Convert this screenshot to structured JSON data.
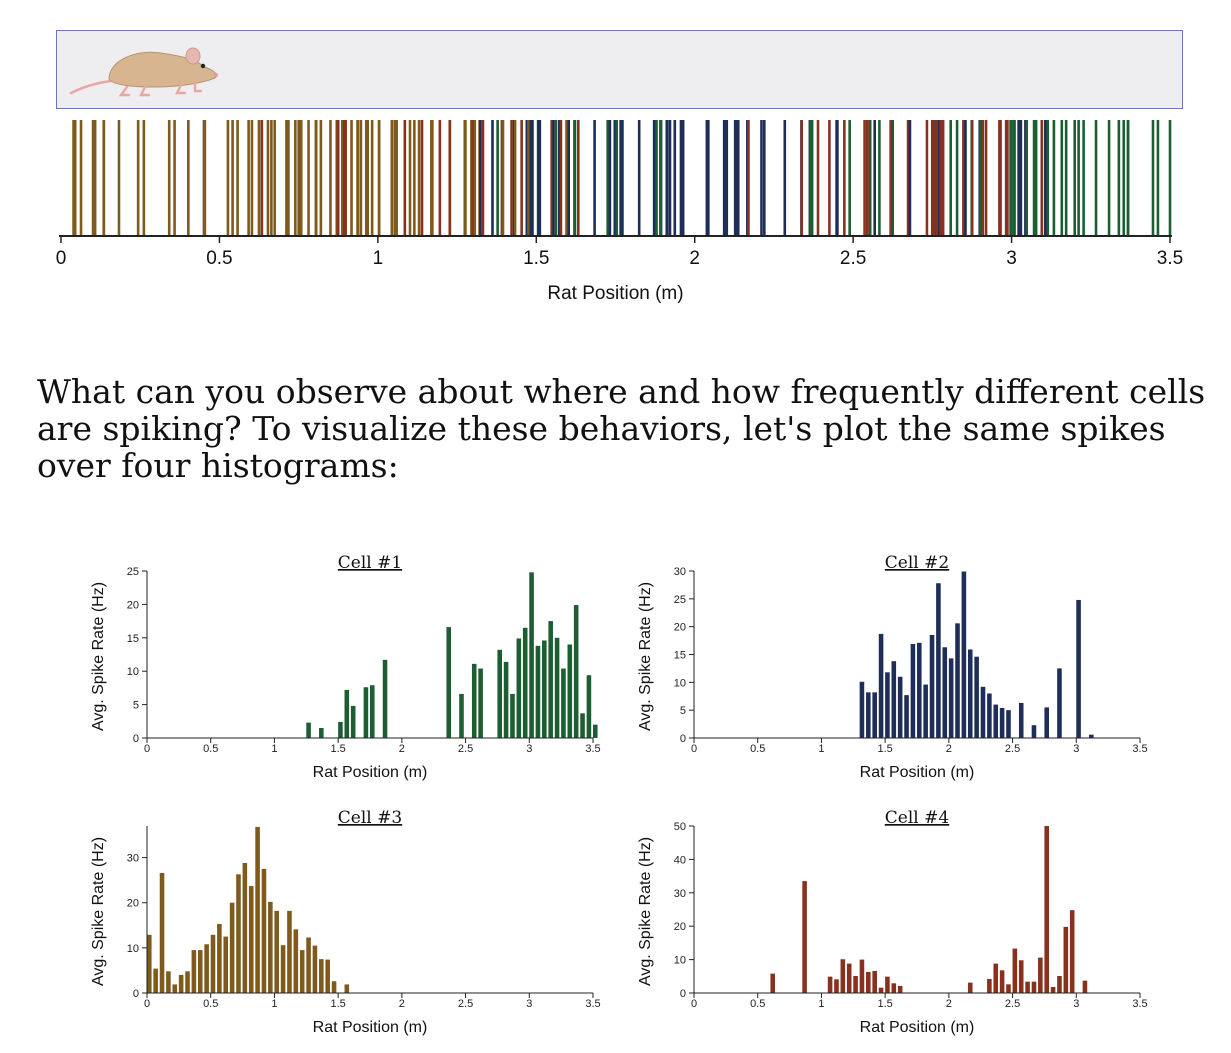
{
  "question": "What can you observe about where and how frequently different cells are spiking? To visualize these behaviors, let's plot the same spikes over four histograms:",
  "raster": {
    "xlabel": "Rat Position (m)",
    "xlim": [
      0,
      3.5
    ],
    "ticks": [
      0,
      0.5,
      1,
      1.5,
      2,
      2.5,
      3,
      3.5
    ],
    "tick_labels": [
      "0",
      "0.5",
      "1",
      "1.5",
      "2",
      "2.5",
      "3",
      "3.5"
    ]
  },
  "chart_data": [
    {
      "type": "bar",
      "cell": 1,
      "title": "Cell #1",
      "xlabel": "Rat Position (m)",
      "ylabel": "Avg. Spike Rate (Hz)",
      "color": "#1c5e32",
      "bin_width": 0.05,
      "xlim": [
        0,
        3.5
      ],
      "ylim": [
        0,
        25
      ],
      "xticks": [
        0,
        0.5,
        1,
        1.5,
        2,
        2.5,
        3,
        3.5
      ],
      "xtick_labels": [
        "0",
        "0.5",
        "1",
        "1.5",
        "2",
        "2.5",
        "3",
        "3.5"
      ],
      "yticks": [
        0,
        5,
        10,
        15,
        20,
        25
      ],
      "ytick_labels": [
        "0",
        "5",
        "10",
        "15",
        "20",
        "25"
      ],
      "bins": [
        {
          "x": 1.25,
          "y": 2.3
        },
        {
          "x": 1.35,
          "y": 1.5
        },
        {
          "x": 1.5,
          "y": 2.4
        },
        {
          "x": 1.55,
          "y": 7.2
        },
        {
          "x": 1.6,
          "y": 4.8
        },
        {
          "x": 1.7,
          "y": 7.6
        },
        {
          "x": 1.75,
          "y": 7.9
        },
        {
          "x": 1.85,
          "y": 11.7
        },
        {
          "x": 2.35,
          "y": 16.6
        },
        {
          "x": 2.45,
          "y": 6.6
        },
        {
          "x": 2.55,
          "y": 11.1
        },
        {
          "x": 2.6,
          "y": 10.4
        },
        {
          "x": 2.75,
          "y": 13.2
        },
        {
          "x": 2.8,
          "y": 11.4
        },
        {
          "x": 2.85,
          "y": 6.6
        },
        {
          "x": 2.9,
          "y": 14.9
        },
        {
          "x": 2.95,
          "y": 16.5
        },
        {
          "x": 3.0,
          "y": 24.8
        },
        {
          "x": 3.05,
          "y": 13.8
        },
        {
          "x": 3.1,
          "y": 14.6
        },
        {
          "x": 3.15,
          "y": 17.5
        },
        {
          "x": 3.2,
          "y": 15.0
        },
        {
          "x": 3.25,
          "y": 10.4
        },
        {
          "x": 3.3,
          "y": 14.0
        },
        {
          "x": 3.35,
          "y": 19.9
        },
        {
          "x": 3.4,
          "y": 3.7
        },
        {
          "x": 3.45,
          "y": 9.4
        },
        {
          "x": 3.5,
          "y": 2.0
        }
      ]
    },
    {
      "type": "bar",
      "cell": 2,
      "title": "Cell #2",
      "xlabel": "Rat Position (m)",
      "ylabel": "Avg. Spike Rate (Hz)",
      "color": "#1e2e58",
      "bin_width": 0.05,
      "xlim": [
        0,
        3.5
      ],
      "ylim": [
        0,
        30
      ],
      "xticks": [
        0,
        0.5,
        1,
        1.5,
        2,
        2.5,
        3,
        3.5
      ],
      "xtick_labels": [
        "0",
        "0.5",
        "1",
        "1.5",
        "2",
        "2.5",
        "3",
        "3.5"
      ],
      "yticks": [
        0,
        5,
        10,
        15,
        20,
        25,
        30
      ],
      "ytick_labels": [
        "0",
        "5",
        "10",
        "15",
        "20",
        "25",
        "30"
      ],
      "bins": [
        {
          "x": 1.3,
          "y": 10.1
        },
        {
          "x": 1.35,
          "y": 8.2
        },
        {
          "x": 1.4,
          "y": 8.2
        },
        {
          "x": 1.45,
          "y": 18.7
        },
        {
          "x": 1.5,
          "y": 11.8
        },
        {
          "x": 1.55,
          "y": 13.8
        },
        {
          "x": 1.6,
          "y": 11.0
        },
        {
          "x": 1.65,
          "y": 7.7
        },
        {
          "x": 1.7,
          "y": 16.9
        },
        {
          "x": 1.75,
          "y": 17.1
        },
        {
          "x": 1.8,
          "y": 9.6
        },
        {
          "x": 1.85,
          "y": 18.5
        },
        {
          "x": 1.9,
          "y": 27.8
        },
        {
          "x": 1.95,
          "y": 16.3
        },
        {
          "x": 2.0,
          "y": 14.3
        },
        {
          "x": 2.05,
          "y": 20.6
        },
        {
          "x": 2.1,
          "y": 29.9
        },
        {
          "x": 2.15,
          "y": 15.9
        },
        {
          "x": 2.2,
          "y": 14.6
        },
        {
          "x": 2.25,
          "y": 9.2
        },
        {
          "x": 2.3,
          "y": 8.0
        },
        {
          "x": 2.35,
          "y": 6.0
        },
        {
          "x": 2.4,
          "y": 5.4
        },
        {
          "x": 2.45,
          "y": 5.0
        },
        {
          "x": 2.55,
          "y": 6.3
        },
        {
          "x": 2.65,
          "y": 2.3
        },
        {
          "x": 2.75,
          "y": 5.5
        },
        {
          "x": 2.85,
          "y": 12.5
        },
        {
          "x": 3.0,
          "y": 24.8
        },
        {
          "x": 3.1,
          "y": 0.6
        }
      ]
    },
    {
      "type": "bar",
      "cell": 3,
      "title": "Cell #3",
      "xlabel": "Rat Position (m)",
      "ylabel": "Avg. Spike Rate (Hz)",
      "color": "#7e5a1c",
      "bin_width": 0.05,
      "xlim": [
        0,
        3.5
      ],
      "ylim": [
        0,
        37
      ],
      "xticks": [
        0,
        0.5,
        1,
        1.5,
        2,
        2.5,
        3,
        3.5
      ],
      "xtick_labels": [
        "0",
        "0.5",
        "1",
        "1.5",
        "2",
        "2.5",
        "3",
        "3.5"
      ],
      "yticks": [
        0,
        10,
        20,
        30
      ],
      "ytick_labels": [
        "0",
        "10",
        "20",
        "30"
      ],
      "bins": [
        {
          "x": 0.0,
          "y": 12.9
        },
        {
          "x": 0.05,
          "y": 5.4
        },
        {
          "x": 0.1,
          "y": 26.6
        },
        {
          "x": 0.15,
          "y": 4.8
        },
        {
          "x": 0.2,
          "y": 1.9
        },
        {
          "x": 0.25,
          "y": 4.0
        },
        {
          "x": 0.3,
          "y": 4.8
        },
        {
          "x": 0.35,
          "y": 9.5
        },
        {
          "x": 0.4,
          "y": 9.5
        },
        {
          "x": 0.45,
          "y": 10.8
        },
        {
          "x": 0.5,
          "y": 12.9
        },
        {
          "x": 0.55,
          "y": 15.3
        },
        {
          "x": 0.6,
          "y": 12.5
        },
        {
          "x": 0.65,
          "y": 20.0
        },
        {
          "x": 0.7,
          "y": 26.3
        },
        {
          "x": 0.75,
          "y": 28.8
        },
        {
          "x": 0.8,
          "y": 23.7
        },
        {
          "x": 0.85,
          "y": 36.8
        },
        {
          "x": 0.9,
          "y": 27.5
        },
        {
          "x": 0.95,
          "y": 20.2
        },
        {
          "x": 1.0,
          "y": 18.2
        },
        {
          "x": 1.05,
          "y": 10.6
        },
        {
          "x": 1.1,
          "y": 18.2
        },
        {
          "x": 1.15,
          "y": 14.1
        },
        {
          "x": 1.2,
          "y": 9.5
        },
        {
          "x": 1.25,
          "y": 12.3
        },
        {
          "x": 1.3,
          "y": 10.5
        },
        {
          "x": 1.35,
          "y": 7.5
        },
        {
          "x": 1.4,
          "y": 7.4
        },
        {
          "x": 1.45,
          "y": 2.6
        },
        {
          "x": 1.55,
          "y": 1.9
        }
      ]
    },
    {
      "type": "bar",
      "cell": 4,
      "title": "Cell #4",
      "xlabel": "Rat Position (m)",
      "ylabel": "Avg. Spike Rate (Hz)",
      "color": "#87311e",
      "bin_width": 0.05,
      "xlim": [
        0,
        3.5
      ],
      "ylim": [
        0,
        50
      ],
      "xticks": [
        0,
        0.5,
        1,
        1.5,
        2,
        2.5,
        3,
        3.5
      ],
      "xtick_labels": [
        "0",
        "0.5",
        "1",
        "1.5",
        "2",
        "2.5",
        "3",
        "3.5"
      ],
      "yticks": [
        0,
        10,
        20,
        30,
        40,
        50
      ],
      "ytick_labels": [
        "0",
        "10",
        "20",
        "30",
        "40",
        "50"
      ],
      "bins": [
        {
          "x": 0.6,
          "y": 5.8
        },
        {
          "x": 0.85,
          "y": 33.5
        },
        {
          "x": 1.05,
          "y": 4.9
        },
        {
          "x": 1.1,
          "y": 4.1
        },
        {
          "x": 1.15,
          "y": 10.1
        },
        {
          "x": 1.2,
          "y": 8.8
        },
        {
          "x": 1.25,
          "y": 5.1
        },
        {
          "x": 1.3,
          "y": 10.0
        },
        {
          "x": 1.35,
          "y": 6.3
        },
        {
          "x": 1.4,
          "y": 6.6
        },
        {
          "x": 1.45,
          "y": 1.6
        },
        {
          "x": 1.5,
          "y": 4.9
        },
        {
          "x": 1.55,
          "y": 2.9
        },
        {
          "x": 1.6,
          "y": 2.1
        },
        {
          "x": 2.15,
          "y": 3.1
        },
        {
          "x": 2.3,
          "y": 4.2
        },
        {
          "x": 2.35,
          "y": 8.8
        },
        {
          "x": 2.4,
          "y": 6.8
        },
        {
          "x": 2.45,
          "y": 2.6
        },
        {
          "x": 2.5,
          "y": 13.3
        },
        {
          "x": 2.55,
          "y": 9.8
        },
        {
          "x": 2.6,
          "y": 3.4
        },
        {
          "x": 2.65,
          "y": 3.4
        },
        {
          "x": 2.7,
          "y": 10.6
        },
        {
          "x": 2.75,
          "y": 50.0
        },
        {
          "x": 2.8,
          "y": 1.8
        },
        {
          "x": 2.85,
          "y": 5.1
        },
        {
          "x": 2.9,
          "y": 19.8
        },
        {
          "x": 2.95,
          "y": 24.8
        },
        {
          "x": 3.05,
          "y": 3.7
        }
      ]
    }
  ]
}
